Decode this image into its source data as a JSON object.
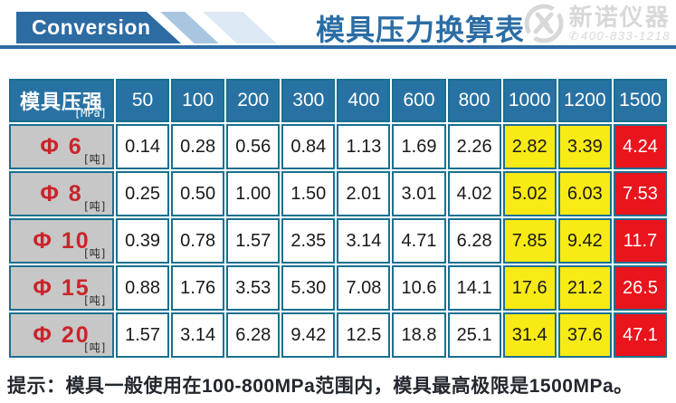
{
  "banner": {
    "conversion_label": "Conversion",
    "title": "模具压力换算表",
    "logo": {
      "brand": "新诺仪器",
      "phone": "400-833-1218"
    }
  },
  "table": {
    "corner": {
      "label": "模具压强",
      "unit": "[MPa]"
    },
    "columns": [
      {
        "label": "50",
        "style": "normal"
      },
      {
        "label": "100",
        "style": "normal"
      },
      {
        "label": "200",
        "style": "normal"
      },
      {
        "label": "300",
        "style": "normal"
      },
      {
        "label": "400",
        "style": "normal"
      },
      {
        "label": "600",
        "style": "normal"
      },
      {
        "label": "800",
        "style": "normal"
      },
      {
        "label": "1000",
        "style": "warning"
      },
      {
        "label": "1200",
        "style": "warning"
      },
      {
        "label": "1500",
        "style": "danger"
      }
    ],
    "rows": [
      {
        "label": "Φ 6",
        "unit": "[吨]",
        "values": [
          "0.14",
          "0.28",
          "0.56",
          "0.84",
          "1.13",
          "1.69",
          "2.26",
          "2.82",
          "3.39",
          "4.24"
        ]
      },
      {
        "label": "Φ 8",
        "unit": "[吨]",
        "values": [
          "0.25",
          "0.50",
          "1.00",
          "1.50",
          "2.01",
          "3.01",
          "4.02",
          "5.02",
          "6.03",
          "7.53"
        ]
      },
      {
        "label": "Φ 10",
        "unit": "[吨]",
        "values": [
          "0.39",
          "0.78",
          "1.57",
          "2.35",
          "3.14",
          "4.71",
          "6.28",
          "7.85",
          "9.42",
          "11.7"
        ]
      },
      {
        "label": "Φ 15",
        "unit": "[吨]",
        "values": [
          "0.88",
          "1.76",
          "3.53",
          "5.30",
          "7.08",
          "10.6",
          "14.1",
          "17.6",
          "21.2",
          "26.5"
        ]
      },
      {
        "label": "Φ 20",
        "unit": "[吨]",
        "values": [
          "1.57",
          "3.14",
          "6.28",
          "9.42",
          "12.5",
          "18.8",
          "25.1",
          "31.4",
          "37.6",
          "47.1"
        ]
      }
    ]
  },
  "footer": {
    "tip": "提示：模具一般使用在100-800MPa范围内，模具最高极限是1500MPa。"
  },
  "colors": {
    "banner_blue": "#2d6ba3",
    "header_blue": "#2872a3",
    "border_teal": "#1a7090",
    "row_header_gray": "#c7c7c7",
    "phi_red": "#c9242b",
    "warning_yellow": "#f7ea15",
    "danger_red": "#e9141c",
    "title_blue": "#2b6da4",
    "logo_gray": "#d8d8d8"
  },
  "chart_data": {
    "type": "table",
    "title": "模具压力换算表",
    "column_header": "模具压强 [MPa]",
    "row_unit": "吨",
    "columns_mpa": [
      50,
      100,
      200,
      300,
      400,
      600,
      800,
      1000,
      1200,
      1500
    ],
    "rows": [
      {
        "die": "Φ6",
        "tons": [
          0.14,
          0.28,
          0.56,
          0.84,
          1.13,
          1.69,
          2.26,
          2.82,
          3.39,
          4.24
        ]
      },
      {
        "die": "Φ8",
        "tons": [
          0.25,
          0.5,
          1.0,
          1.5,
          2.01,
          3.01,
          4.02,
          5.02,
          6.03,
          7.53
        ]
      },
      {
        "die": "Φ10",
        "tons": [
          0.39,
          0.78,
          1.57,
          2.35,
          3.14,
          4.71,
          6.28,
          7.85,
          9.42,
          11.7
        ]
      },
      {
        "die": "Φ15",
        "tons": [
          0.88,
          1.76,
          3.53,
          5.3,
          7.08,
          10.6,
          14.1,
          17.6,
          21.2,
          26.5
        ]
      },
      {
        "die": "Φ20",
        "tons": [
          1.57,
          3.14,
          6.28,
          9.42,
          12.5,
          18.8,
          25.1,
          31.4,
          37.6,
          47.1
        ]
      }
    ],
    "highlight": {
      "warning_columns_mpa": [
        1000,
        1200
      ],
      "danger_columns_mpa": [
        1500
      ]
    },
    "note": "提示：模具一般使用在100-800MPa范围内，模具最高极限是1500MPa。"
  }
}
